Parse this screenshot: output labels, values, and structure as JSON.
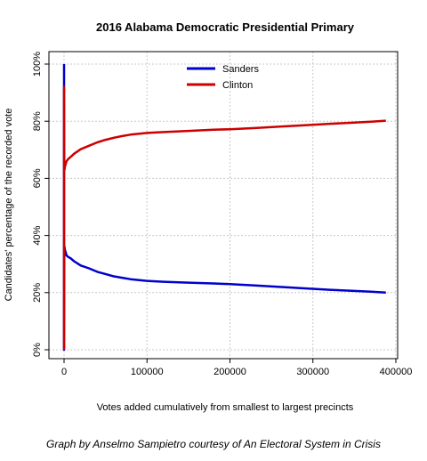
{
  "chart_data": {
    "type": "line",
    "title": "2016 Alabama Democratic Presidential Primary",
    "xlabel": "Votes added cumulatively from smallest to largest precincts",
    "ylabel": "Candidates' percentage of the recorded vote",
    "xlim": [
      0,
      400000
    ],
    "ylim": [
      0,
      100
    ],
    "x_ticks": [
      0,
      100000,
      200000,
      300000,
      400000
    ],
    "x_tick_labels": [
      "0",
      "100000",
      "200000",
      "300000",
      "400000"
    ],
    "y_ticks": [
      0,
      20,
      40,
      60,
      80,
      100
    ],
    "y_tick_labels": [
      "0%",
      "20%",
      "40%",
      "60%",
      "80%",
      "100%"
    ],
    "grid": true,
    "legend_position": "top-center",
    "series": [
      {
        "name": "Sanders",
        "color": "#0000cc",
        "x": [
          0,
          0,
          200,
          500,
          1000,
          2000,
          3000,
          5000,
          8000,
          12000,
          20000,
          30000,
          40000,
          50000,
          60000,
          70000,
          80000,
          100000,
          120000,
          150000,
          180000,
          200000,
          230000,
          260000,
          290000,
          320000,
          350000,
          370000,
          388000
        ],
        "y": [
          100,
          0,
          33,
          36,
          35,
          34,
          33,
          32.5,
          32,
          31,
          29.5,
          28.5,
          27.3,
          26.5,
          25.7,
          25.2,
          24.7,
          24.1,
          23.8,
          23.5,
          23.2,
          23.0,
          22.5,
          22.0,
          21.5,
          21.0,
          20.6,
          20.3,
          20.0
        ]
      },
      {
        "name": "Clinton",
        "color": "#cc0000",
        "x": [
          0,
          0,
          200,
          500,
          1000,
          2000,
          3000,
          5000,
          8000,
          12000,
          20000,
          30000,
          40000,
          50000,
          60000,
          70000,
          80000,
          100000,
          120000,
          150000,
          180000,
          200000,
          230000,
          260000,
          290000,
          320000,
          350000,
          370000,
          388000
        ],
        "y": [
          0,
          92,
          65,
          63,
          64,
          65,
          66,
          66.8,
          67.5,
          68.6,
          70.2,
          71.4,
          72.6,
          73.5,
          74.2,
          74.8,
          75.3,
          75.9,
          76.2,
          76.6,
          77.0,
          77.2,
          77.6,
          78.1,
          78.6,
          79.1,
          79.5,
          79.8,
          80.2
        ]
      }
    ]
  },
  "credit": "Graph by Anselmo Sampietro courtesy of An Electoral System in Crisis"
}
